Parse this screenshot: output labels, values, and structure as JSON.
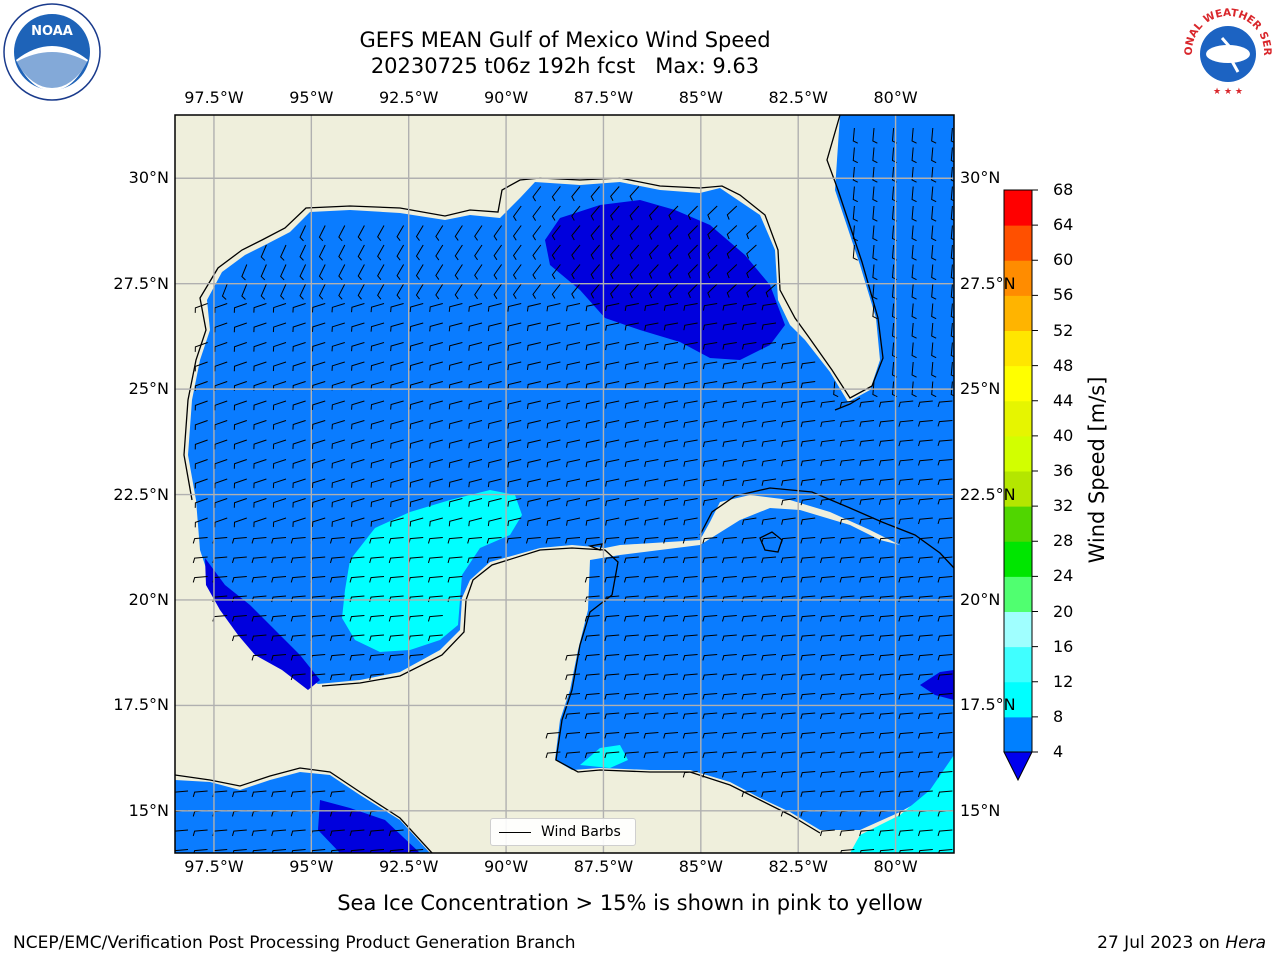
{
  "title": {
    "line1": "GEFS MEAN Gulf of Mexico Wind Speed",
    "line2": "20230725 t06z 192h fcst   Max: 9.63"
  },
  "logos": {
    "left": "noaa-logo",
    "left_text": "NOAA",
    "right": "nws-logo",
    "right_text": "NATIONAL WEATHER SERVICE"
  },
  "map": {
    "longitude_labels": [
      "97.5°W",
      "95°W",
      "92.5°W",
      "90°W",
      "87.5°W",
      "85°W",
      "82.5°W",
      "80°W"
    ],
    "latitude_labels": [
      "30°N",
      "27.5°N",
      "25°N",
      "22.5°N",
      "20°N",
      "17.5°N",
      "15°N"
    ],
    "lon_range": [
      -98.5,
      -78.5
    ],
    "lat_range": [
      14,
      31.5
    ],
    "land_color": "#efefdc",
    "coastline_color": "#000000",
    "grid_color": "#b0b0b0"
  },
  "legend": {
    "wind_barbs_label": "Wind Barbs"
  },
  "colorbar": {
    "title": "Wind Speed [m/s]",
    "tick_labels": [
      "4",
      "8",
      "12",
      "16",
      "20",
      "24",
      "28",
      "32",
      "36",
      "40",
      "44",
      "48",
      "52",
      "56",
      "60",
      "64",
      "68"
    ],
    "levels": [
      4,
      8,
      12,
      16,
      20,
      24,
      28,
      32,
      36,
      40,
      44,
      48,
      52,
      56,
      60,
      64,
      68
    ],
    "colors": [
      "#0080ff",
      "#00ffff",
      "#40ffff",
      "#a0ffff",
      "#50ff70",
      "#00e600",
      "#50d600",
      "#b4e600",
      "#d2ff00",
      "#e6f500",
      "#ffff00",
      "#ffe600",
      "#ffb400",
      "#ff8c00",
      "#ff5000",
      "#ff0000"
    ],
    "under_color": "#0000ee"
  },
  "wind_speed_bands": {
    "below_4_color": "#0000dd",
    "4_to_8_color": "#0a7cff",
    "8_to_12_color": "#00ffff"
  },
  "caption": "Sea Ice Concentration > 15% is shown in pink to yellow",
  "footer": {
    "left": "NCEP/EMC/Verification Post Processing Product Generation Branch",
    "right_date": "27 Jul 2023 on ",
    "right_machine": "Hera"
  }
}
